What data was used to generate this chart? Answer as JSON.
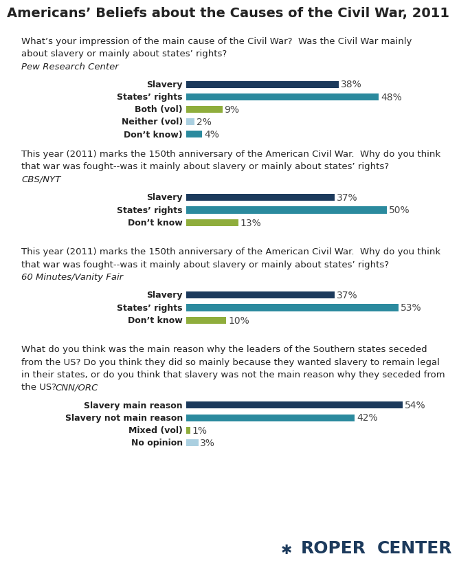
{
  "title": "Americans’ Beliefs about the Causes of the Civil War, 2011",
  "background_color": "#ffffff",
  "sections": [
    {
      "question_parts": [
        {
          "text": "What’s your impression of the main cause of the Civil War?  Was the Civil War mainly",
          "italic": false
        },
        {
          "text": "about slavery or mainly about states’ rights? ",
          "italic": false
        },
        {
          "text": "Pew Research Center",
          "italic": true
        }
      ],
      "bars": [
        {
          "label": "Slavery",
          "value": 38,
          "color": "#1c3a5c"
        },
        {
          "label": "States’ rights",
          "value": 48,
          "color": "#2b8a9e"
        },
        {
          "label": "Both (vol)",
          "value": 9,
          "color": "#8fad3c"
        },
        {
          "label": "Neither (vol)",
          "value": 2,
          "color": "#aacfe0"
        },
        {
          "label": "Don’t know)",
          "value": 4,
          "color": "#2b8a9e"
        }
      ]
    },
    {
      "question_parts": [
        {
          "text": "This year (2011) marks the 150th anniversary of the American Civil War.  Why do you think",
          "italic": false
        },
        {
          "text": "that war was fought--was it mainly about slavery or mainly about states’ rights? ",
          "italic": false
        },
        {
          "text": "CBS/NYT",
          "italic": true
        }
      ],
      "bars": [
        {
          "label": "Slavery",
          "value": 37,
          "color": "#1c3a5c"
        },
        {
          "label": "States’ rights",
          "value": 50,
          "color": "#2b8a9e"
        },
        {
          "label": "Don’t know",
          "value": 13,
          "color": "#8fad3c"
        }
      ]
    },
    {
      "question_parts": [
        {
          "text": "This year (2011) marks the 150th anniversary of the American Civil War.  Why do you think",
          "italic": false
        },
        {
          "text": "that war was fought--was it mainly about slavery or mainly about states’ rights?",
          "italic": false
        },
        {
          "text": "60 Minutes/Vanity Fair",
          "italic": true,
          "newline": true
        }
      ],
      "bars": [
        {
          "label": "Slavery",
          "value": 37,
          "color": "#1c3a5c"
        },
        {
          "label": "States’ rights",
          "value": 53,
          "color": "#2b8a9e"
        },
        {
          "label": "Don’t know",
          "value": 10,
          "color": "#8fad3c"
        }
      ]
    },
    {
      "question_parts": [
        {
          "text": "What do you think was the main reason why the leaders of the Southern states seceded",
          "italic": false
        },
        {
          "text": "from the US? Do you think they did so mainly because they wanted slavery to remain legal",
          "italic": false
        },
        {
          "text": "in their states, or do you think that slavery was not the main reason why they seceded from",
          "italic": false
        },
        {
          "text": "the US? ",
          "italic": false
        },
        {
          "text": "CNN/ORC",
          "italic": true,
          "inline": true
        }
      ],
      "bars": [
        {
          "label": "Slavery main reason",
          "value": 54,
          "color": "#1c3a5c"
        },
        {
          "label": "Slavery not main reason",
          "value": 42,
          "color": "#2b8a9e"
        },
        {
          "label": "Mixed (vol)",
          "value": 1,
          "color": "#8fad3c"
        },
        {
          "label": "No opinion",
          "value": 3,
          "color": "#aacfe0"
        }
      ]
    }
  ],
  "max_value": 60,
  "bar_height": 0.55,
  "label_fontsize": 9,
  "value_fontsize": 10,
  "question_fontsize": 9.5,
  "title_fontsize": 14
}
